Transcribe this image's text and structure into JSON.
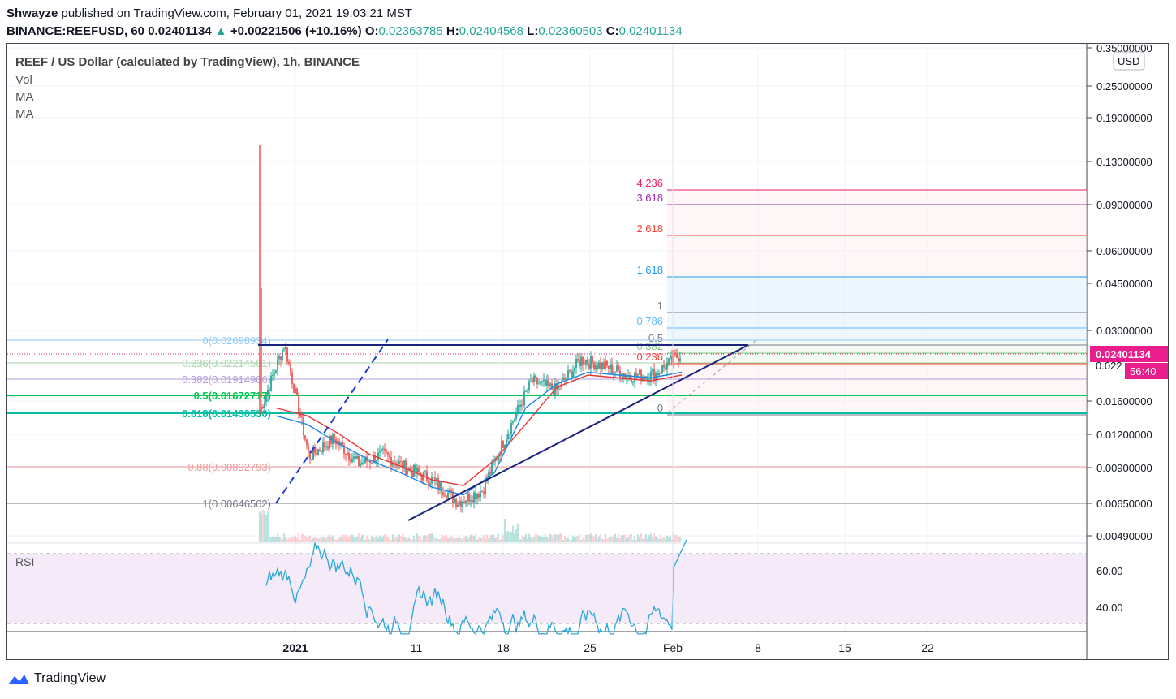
{
  "header": {
    "author": "Shwayze",
    "published": "published on TradingView.com, February 01, 2021 19:03:21 MST",
    "symbol": "BINANCE:REEFUSD, 60",
    "last": "0.02401134",
    "arrow": "▲",
    "change": "+0.00221506 (+10.16%)",
    "o_label": "O:",
    "o": "0.02363785",
    "h_label": "H:",
    "h": "0.02404568",
    "l_label": "L:",
    "l": "0.02360503",
    "c_label": "C:",
    "c": "0.02401134"
  },
  "legend": {
    "title": "REEF / US Dollar (calculated by TradingView), 1h, BINANCE",
    "vol": "Vol",
    "ma1": "MA",
    "ma2": "MA",
    "rsi": "RSI"
  },
  "currency": "USD",
  "price_axis": [
    "0.35000000",
    "0.25000000",
    "0.19000000",
    "0.13000000",
    "0.09000000",
    "0.06000000",
    "0.04500000",
    "0.03000000",
    "0.02200000",
    "0.01600000",
    "0.01200000",
    "0.00900000",
    "0.00650000",
    "0.00490000"
  ],
  "price_badge": "0.02401134",
  "price_badge_sub": "0.022",
  "countdown": "56:40",
  "rsi_axis": [
    "60.00",
    "40.00"
  ],
  "time_axis": [
    "2021",
    "11",
    "18",
    "25",
    "Feb",
    "8",
    "15",
    "22"
  ],
  "fib_retracement": [
    {
      "label": "0(0.02698934)",
      "color": "#90caf9"
    },
    {
      "label": "0.236(0.02214501)",
      "color": "#a5d6a7"
    },
    {
      "label": "0.382(0.01914906)",
      "color": "#b39ddb"
    },
    {
      "label": "0.5(0.01672717)",
      "color": "#00c853"
    },
    {
      "label": "0.618(0.01430530)",
      "color": "#00bfa5"
    },
    {
      "label": "0.88(0.00892793)",
      "color": "#ef9a9a"
    },
    {
      "label": "1(0.00646502)",
      "color": "#787b86"
    }
  ],
  "fib_extension": [
    {
      "label": "4.236",
      "color": "#e91e63"
    },
    {
      "label": "3.618",
      "color": "#9c27b0"
    },
    {
      "label": "2.618",
      "color": "#f44336"
    },
    {
      "label": "1.618",
      "color": "#2196f3"
    },
    {
      "label": "1",
      "color": "#787b86"
    },
    {
      "label": "0.786",
      "color": "#64b5f6"
    },
    {
      "label": "0.5",
      "color": "#787b86"
    },
    {
      "label": "0.382",
      "color": "#81c784"
    },
    {
      "label": "0.236",
      "color": "#f44336"
    },
    {
      "label": "0",
      "color": "#787b86"
    }
  ],
  "chart_data": {
    "type": "candlestick",
    "title": "REEF / US Dollar (calculated by TradingView), 1h, BINANCE",
    "y_scale": "log",
    "ylim": [
      0.0045,
      0.37
    ],
    "x_ticks": [
      "2021",
      "11",
      "18",
      "25",
      "Feb",
      "8",
      "15",
      "22"
    ],
    "series": [
      {
        "name": "price_path",
        "values": [
          0.0145,
          0.0262,
          0.0098,
          0.0115,
          0.0092,
          0.01,
          0.0088,
          0.008,
          0.0066,
          0.0073,
          0.012,
          0.019,
          0.0175,
          0.023,
          0.0215,
          0.0198,
          0.0202,
          0.024
        ]
      },
      {
        "name": "MA_fast",
        "values": [
          0.014,
          0.013,
          0.011,
          0.0095,
          0.0085,
          0.0075,
          0.007,
          0.0085,
          0.015,
          0.0185,
          0.0205,
          0.02,
          0.0195,
          0.0205
        ]
      },
      {
        "name": "MA_slow",
        "values": [
          0.015,
          0.014,
          0.012,
          0.01,
          0.009,
          0.008,
          0.0076,
          0.0095,
          0.013,
          0.018,
          0.02,
          0.0195,
          0.019,
          0.02
        ]
      }
    ],
    "rsi": {
      "upper": 70,
      "lower": 30,
      "last": 78
    }
  },
  "brand": "TradingView"
}
